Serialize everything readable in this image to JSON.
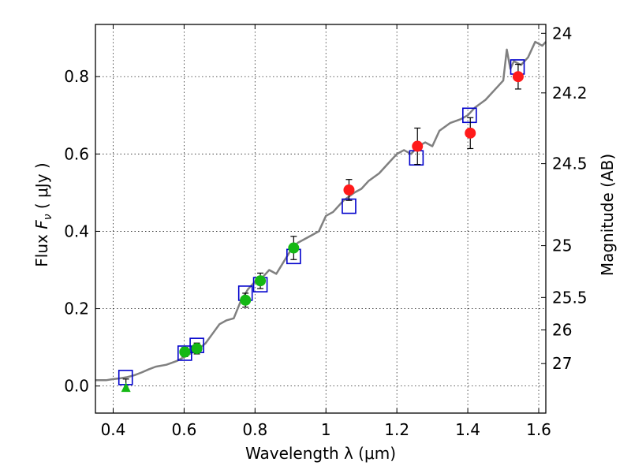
{
  "chart_data": {
    "type": "scatter",
    "xlabel": "Wavelength  λ (μm)",
    "ylabel": "Flux  F_ν  ( μJy )",
    "ylabel_right": "Magnitude (AB)",
    "xlim": [
      0.35,
      1.62
    ],
    "ylim": [
      -0.07,
      0.935
    ],
    "x_ticks": [
      0.4,
      0.6,
      0.8,
      1.0,
      1.2,
      1.4,
      1.6
    ],
    "x_tick_labels": [
      "0.4",
      "0.6",
      "0.8",
      "1",
      "1.2",
      "1.4",
      "1.6"
    ],
    "y_ticks": [
      0.0,
      0.2,
      0.4,
      0.6,
      0.8
    ],
    "y_tick_labels": [
      "0.0",
      "0.2",
      "0.4",
      "0.6",
      "0.8"
    ],
    "right_ticks": [
      {
        "flux": 0.912,
        "label": "24"
      },
      {
        "flux": 0.758,
        "label": "24.2"
      },
      {
        "flux": 0.575,
        "label": "24.5"
      },
      {
        "flux": 0.363,
        "label": "25"
      },
      {
        "flux": 0.229,
        "label": "25.5"
      },
      {
        "flux": 0.145,
        "label": "26"
      },
      {
        "flux": 0.058,
        "label": "27"
      }
    ],
    "grid": true,
    "colors": {
      "model": "#808080",
      "green": "#14b814",
      "red": "#ff1a1a",
      "square": "#0000cc",
      "error": "#000000"
    },
    "series": [
      {
        "marker": "line",
        "x": [
          0.35,
          0.38,
          0.4,
          0.42,
          0.44,
          0.46,
          0.48,
          0.5,
          0.52,
          0.55,
          0.58,
          0.6,
          0.62,
          0.64,
          0.66,
          0.68,
          0.7,
          0.72,
          0.74,
          0.76,
          0.78,
          0.8,
          0.82,
          0.84,
          0.86,
          0.88,
          0.9,
          0.92,
          0.94,
          0.96,
          0.98,
          1.0,
          1.02,
          1.05,
          1.08,
          1.1,
          1.12,
          1.15,
          1.18,
          1.2,
          1.22,
          1.24,
          1.26,
          1.28,
          1.3,
          1.32,
          1.35,
          1.38,
          1.4,
          1.42,
          1.45,
          1.48,
          1.5,
          1.51,
          1.52,
          1.53,
          1.55,
          1.57,
          1.59,
          1.61,
          1.62
        ],
        "y": [
          0.015,
          0.015,
          0.018,
          0.02,
          0.023,
          0.028,
          0.035,
          0.043,
          0.05,
          0.055,
          0.065,
          0.075,
          0.085,
          0.095,
          0.11,
          0.135,
          0.16,
          0.17,
          0.175,
          0.22,
          0.25,
          0.27,
          0.28,
          0.3,
          0.29,
          0.32,
          0.35,
          0.37,
          0.38,
          0.39,
          0.4,
          0.44,
          0.45,
          0.48,
          0.5,
          0.51,
          0.53,
          0.55,
          0.58,
          0.6,
          0.61,
          0.6,
          0.62,
          0.63,
          0.62,
          0.66,
          0.68,
          0.69,
          0.7,
          0.72,
          0.74,
          0.77,
          0.79,
          0.87,
          0.82,
          0.84,
          0.83,
          0.85,
          0.89,
          0.88,
          0.89
        ]
      },
      {
        "marker": "square",
        "x": [
          0.435,
          0.602,
          0.636,
          0.773,
          0.815,
          0.909,
          1.065,
          1.255,
          1.405,
          1.54
        ],
        "y": [
          0.022,
          0.085,
          0.105,
          0.24,
          0.262,
          0.335,
          0.465,
          0.59,
          0.7,
          0.825
        ]
      },
      {
        "marker": "triangle",
        "x": [
          0.436
        ],
        "y": [
          -0.005
        ]
      },
      {
        "marker": "green-circle",
        "x": [
          0.602,
          0.636,
          0.773,
          0.815,
          0.909
        ],
        "y": [
          0.088,
          0.097,
          0.222,
          0.272,
          0.357
        ],
        "err": [
          0.012,
          0.014,
          0.018,
          0.02,
          0.03
        ]
      },
      {
        "marker": "red-circle",
        "x": [
          1.065,
          1.258,
          1.407,
          1.542
        ],
        "y": [
          0.507,
          0.62,
          0.654,
          0.8
        ],
        "err": [
          0.027,
          0.047,
          0.04,
          0.032
        ]
      },
      {
        "marker": "errorbar-only",
        "x": [
          0.436
        ],
        "y": [
          0.003
        ],
        "err": [
          0.015
        ]
      }
    ]
  }
}
